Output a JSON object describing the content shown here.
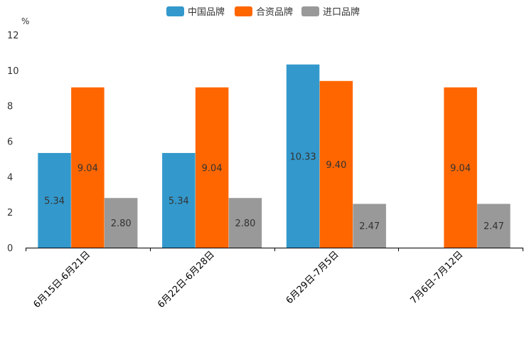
{
  "chart_data": {
    "type": "bar",
    "title": "",
    "xlabel": "",
    "ylabel": "%",
    "ylim": [
      0,
      12
    ],
    "yticks": [
      "0",
      "2",
      "4",
      "6",
      "8",
      "10",
      "12"
    ],
    "grid": false,
    "legend_position": "top-center",
    "categories": [
      "6月15日-6月21日",
      "6月22日-6月28日",
      "6月29日-7月5日",
      "7月6日-7月12日"
    ],
    "series": [
      {
        "name": "中国品牌",
        "color": "#3399cc",
        "values": [
          5.34,
          5.34,
          10.33,
          null
        ],
        "labels": [
          "5.34",
          "5.34",
          "10.33",
          ""
        ]
      },
      {
        "name": "合资品牌",
        "color": "#ff6600",
        "values": [
          9.04,
          9.04,
          9.4,
          9.04
        ],
        "labels": [
          "9.04",
          "9.04",
          "9.40",
          "9.04"
        ]
      },
      {
        "name": "进口品牌",
        "color": "#999999",
        "values": [
          2.8,
          2.8,
          2.47,
          2.47
        ],
        "labels": [
          "2.80",
          "2.80",
          "2.47",
          "2.47"
        ]
      }
    ]
  }
}
